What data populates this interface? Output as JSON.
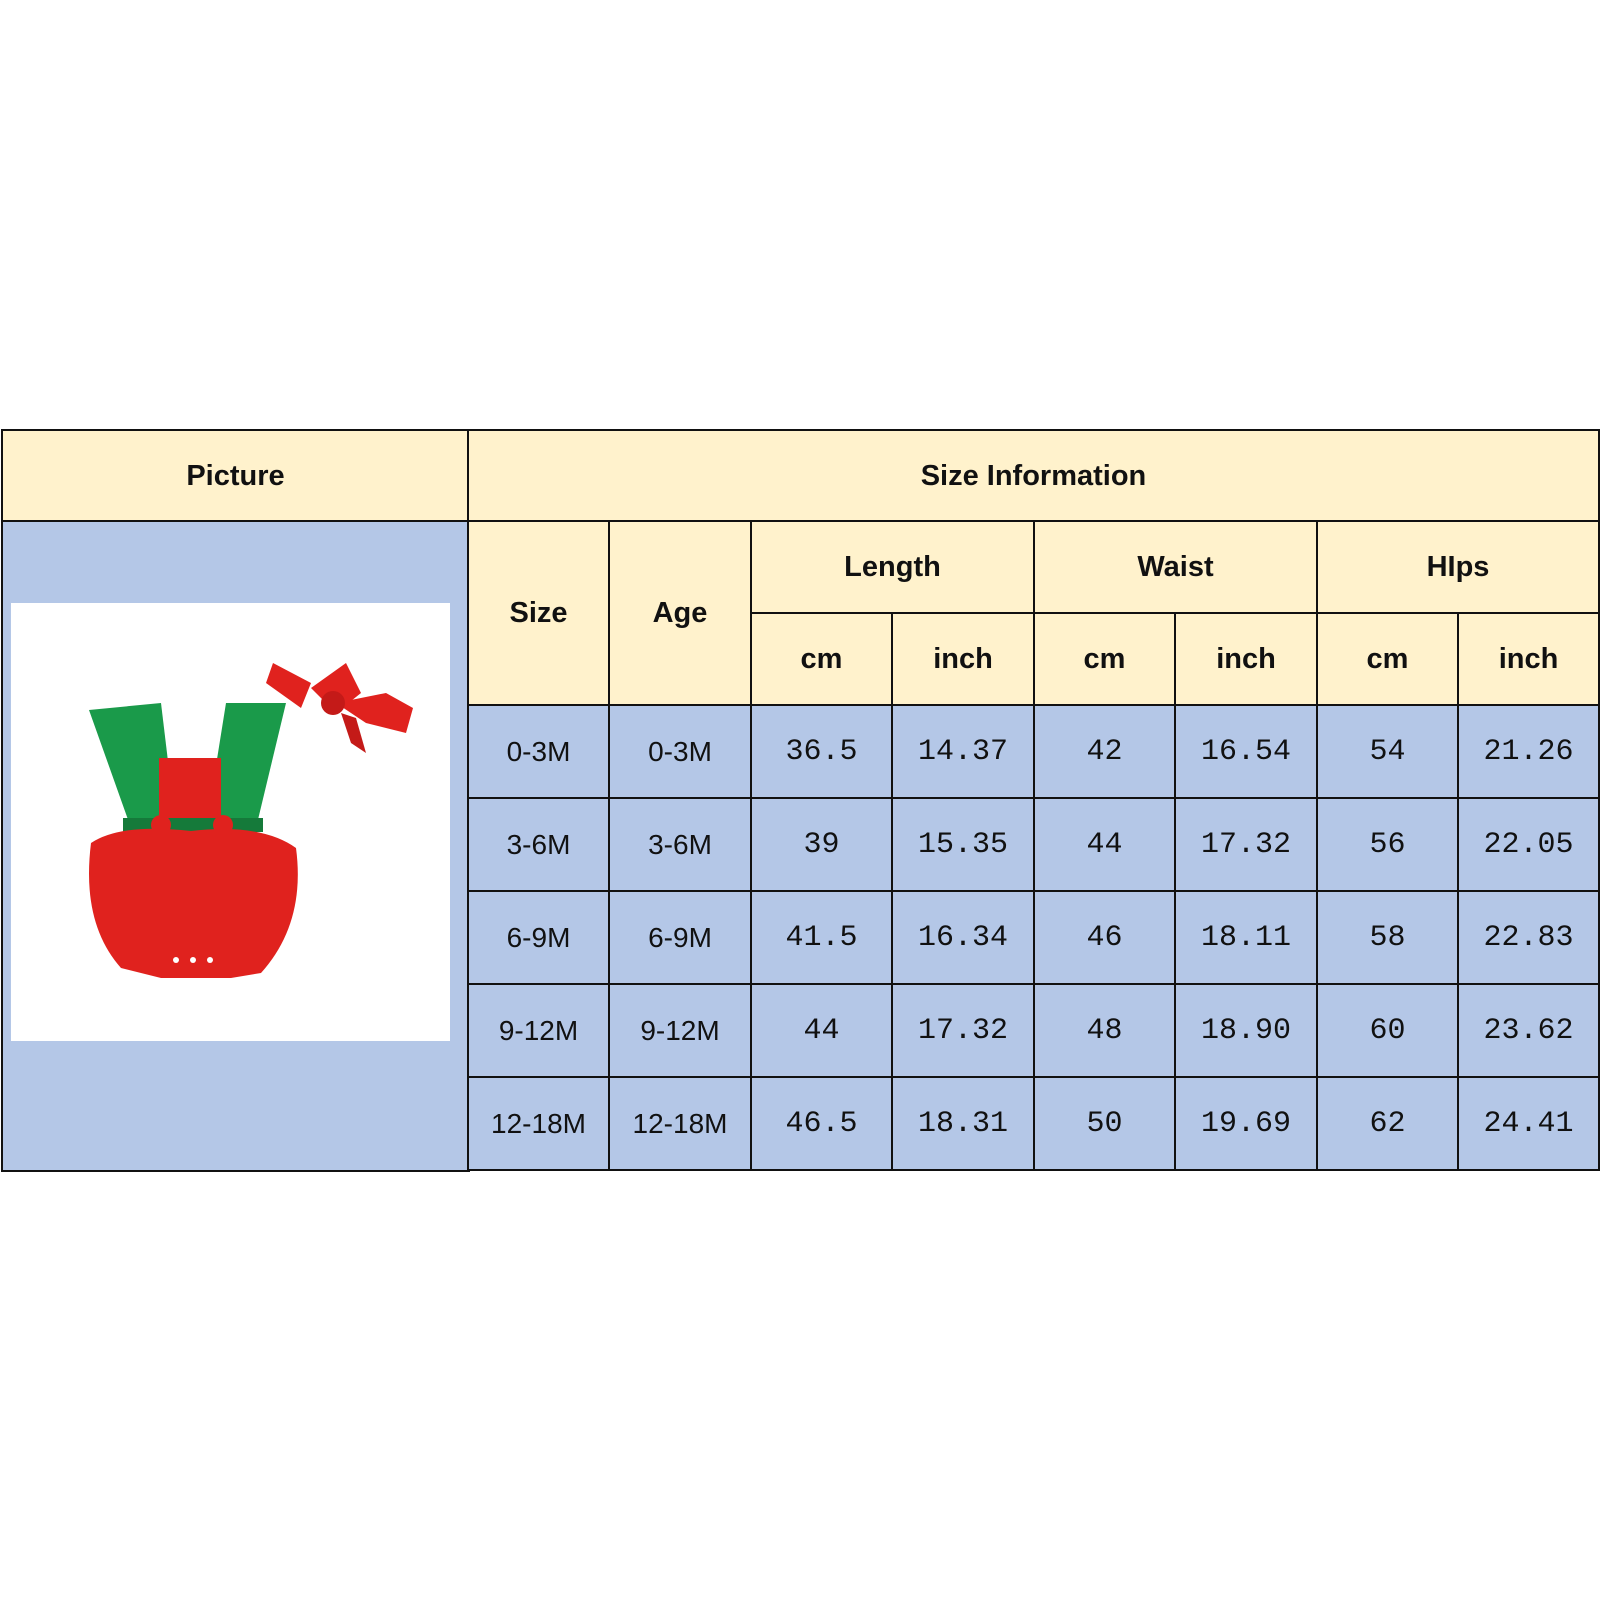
{
  "header": {
    "picture": "Picture",
    "size_information": "Size Information"
  },
  "columns": {
    "size": "Size",
    "age": "Age",
    "groups": [
      {
        "label": "Length",
        "units": [
          "cm",
          "inch"
        ]
      },
      {
        "label": "Waist",
        "units": [
          "cm",
          "inch"
        ]
      },
      {
        "label": "HIps",
        "units": [
          "cm",
          "inch"
        ]
      }
    ]
  },
  "rows": [
    [
      "0-3M",
      "0-3M",
      "36.5",
      "14.37",
      "42",
      "16.54",
      "54",
      "21.26"
    ],
    [
      "3-6M",
      "3-6M",
      "39",
      "15.35",
      "44",
      "17.32",
      "56",
      "22.05"
    ],
    [
      "6-9M",
      "6-9M",
      "41.5",
      "16.34",
      "46",
      "18.11",
      "58",
      "22.83"
    ],
    [
      "9-12M",
      "9-12M",
      "44",
      "17.32",
      "48",
      "18.90",
      "60",
      "23.62"
    ],
    [
      "12-18M",
      "12-18M",
      "46.5",
      "18.31",
      "50",
      "19.69",
      "62",
      "24.41"
    ]
  ],
  "colors": {
    "header_bg": "#FFF2CC",
    "body_bg": "#B4C7E7",
    "border": "#111111",
    "romper_red": "#E0221E",
    "romper_green": "#1A9A4A"
  },
  "picture": {
    "icon": "romper-with-headband-image"
  }
}
